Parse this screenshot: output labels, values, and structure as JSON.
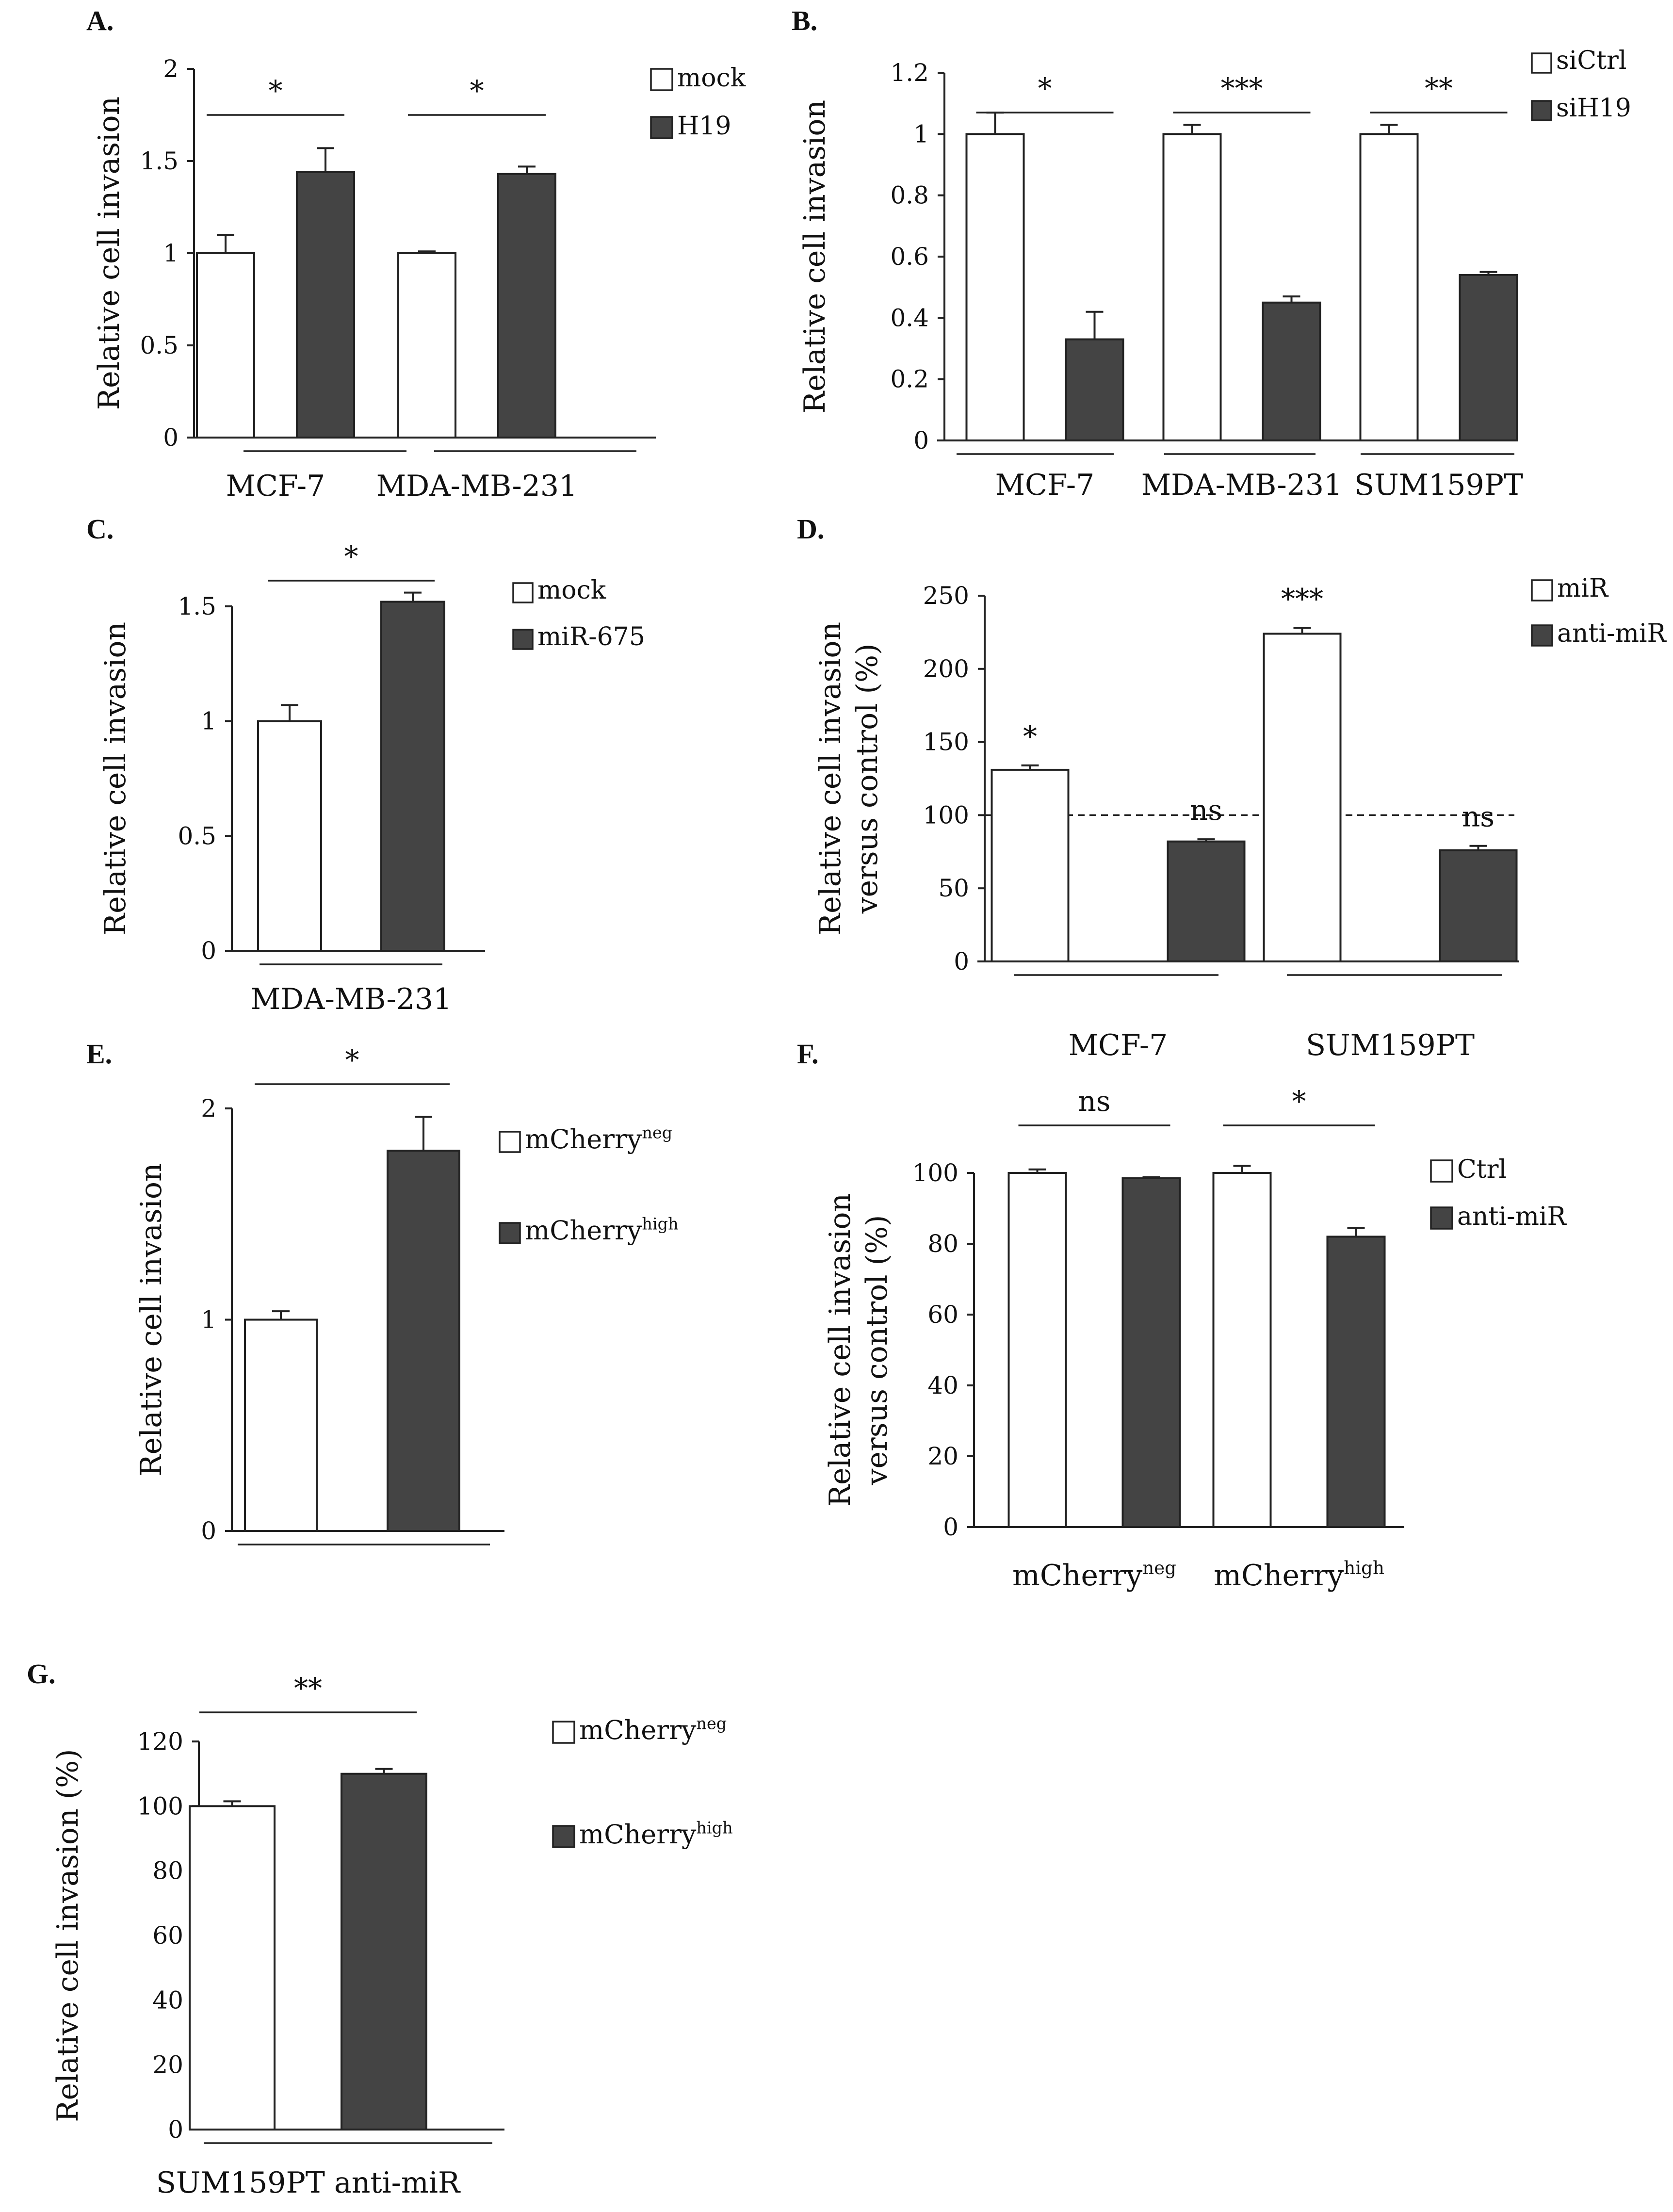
{
  "colors": {
    "empty": "#ffffff",
    "filled": "#444444",
    "ink": "#111111"
  },
  "chart_data": [
    {
      "panel": "A.",
      "type": "bar",
      "ylabel": [
        "Relative cell invasion"
      ],
      "ylim": [
        0,
        2
      ],
      "yticks": [
        "0",
        "0.5",
        "1",
        "1.5",
        "2"
      ],
      "categories": [
        "MCF-7",
        "MDA-MB-231"
      ],
      "series": [
        {
          "name": "mock",
          "values": [
            1.0,
            1.0
          ],
          "errors": [
            0.1,
            0.01
          ]
        },
        {
          "name": "H19",
          "values": [
            1.44,
            1.43
          ],
          "errors": [
            0.13,
            0.04
          ]
        }
      ],
      "significance": [
        {
          "group": 0,
          "label": "*"
        },
        {
          "group": 1,
          "label": "*"
        }
      ]
    },
    {
      "panel": "B.",
      "type": "bar",
      "ylabel": [
        "Relative cell invasion"
      ],
      "ylim": [
        0,
        1.2
      ],
      "yticks": [
        "0",
        "0.2",
        "0.4",
        "0.6",
        "0.8",
        "1",
        "1.2"
      ],
      "categories": [
        "MCF-7",
        "MDA-MB-231",
        "SUM159PT"
      ],
      "series": [
        {
          "name": "siCtrl",
          "values": [
            1.0,
            1.0,
            1.0
          ],
          "errors": [
            0.07,
            0.03,
            0.03
          ]
        },
        {
          "name": "siH19",
          "values": [
            0.33,
            0.45,
            0.54
          ],
          "errors": [
            0.09,
            0.02,
            0.01
          ]
        }
      ],
      "significance": [
        {
          "group": 0,
          "label": "*"
        },
        {
          "group": 1,
          "label": "***"
        },
        {
          "group": 2,
          "label": "**"
        }
      ]
    },
    {
      "panel": "C.",
      "type": "bar",
      "ylabel": [
        "Relative cell invasion"
      ],
      "ylim": [
        0,
        1.5
      ],
      "yticks": [
        "0",
        "0.5",
        "1",
        "1.5"
      ],
      "categories": [
        "MDA-MB-231"
      ],
      "series": [
        {
          "name": "mock",
          "values": [
            1.0
          ],
          "errors": [
            0.07
          ]
        },
        {
          "name": "miR-675",
          "values": [
            1.52
          ],
          "errors": [
            0.04
          ]
        }
      ],
      "significance": [
        {
          "group": 0,
          "label": "*"
        }
      ]
    },
    {
      "panel": "D.",
      "type": "bar",
      "ylabel": [
        "Relative cell invasion",
        "versus control (%)"
      ],
      "ylim": [
        0,
        250
      ],
      "yticks": [
        "0",
        "50",
        "100",
        "150",
        "200",
        "250"
      ],
      "reference_line": 100,
      "categories": [
        "MCF-7",
        "SUM159PT"
      ],
      "series": [
        {
          "name": "miR",
          "values": [
            131,
            224
          ],
          "errors": [
            3,
            4
          ],
          "annotations": [
            "*",
            "***"
          ]
        },
        {
          "name": "anti-miR",
          "values": [
            82,
            76
          ],
          "errors": [
            1.5,
            3
          ],
          "annotations": [
            "ns",
            "ns"
          ]
        }
      ]
    },
    {
      "panel": "E.",
      "type": "bar",
      "ylabel": [
        "Relative cell invasion"
      ],
      "ylim": [
        0,
        2
      ],
      "yticks": [
        "0",
        "1",
        "2"
      ],
      "categories": [
        ""
      ],
      "series": [
        {
          "name": "mCherry",
          "sup": "neg",
          "values": [
            1.0
          ],
          "errors": [
            0.04
          ]
        },
        {
          "name": "mCherry",
          "sup": "high",
          "values": [
            1.8
          ],
          "errors": [
            0.16
          ]
        }
      ],
      "significance": [
        {
          "group": 0,
          "label": "*"
        }
      ]
    },
    {
      "panel": "F.",
      "type": "bar",
      "ylabel": [
        "Relative cell invasion",
        "versus control (%)"
      ],
      "ylim": [
        0,
        100
      ],
      "yticks": [
        "0",
        "20",
        "40",
        "60",
        "80",
        "100"
      ],
      "categories": [
        "mCherry",
        "mCherry"
      ],
      "category_sups": [
        "neg",
        "high"
      ],
      "series": [
        {
          "name": "Ctrl",
          "values": [
            100,
            100
          ],
          "errors": [
            1,
            2
          ]
        },
        {
          "name": "anti-miR",
          "values": [
            98.5,
            82
          ],
          "errors": [
            0.3,
            2.5
          ]
        }
      ],
      "significance": [
        {
          "group": 0,
          "label": "ns"
        },
        {
          "group": 1,
          "label": "*"
        }
      ]
    },
    {
      "panel": "G.",
      "type": "bar",
      "ylabel": [
        "Relative cell invasion (%)"
      ],
      "ylim": [
        0,
        120
      ],
      "yticks": [
        "0",
        "20",
        "40",
        "60",
        "80",
        "100",
        "120"
      ],
      "categories": [
        "SUM159PT anti-miR"
      ],
      "series": [
        {
          "name": "mCherry",
          "sup": "neg",
          "values": [
            100
          ],
          "errors": [
            1.5
          ]
        },
        {
          "name": "mCherry",
          "sup": "high",
          "values": [
            110
          ],
          "errors": [
            1.5
          ]
        }
      ],
      "significance": [
        {
          "group": 0,
          "label": "**"
        }
      ]
    }
  ]
}
